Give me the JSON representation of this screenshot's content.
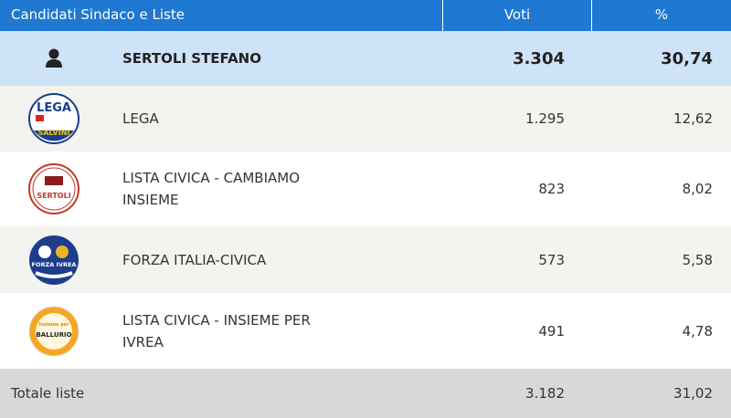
{
  "header": {
    "col_candidates": "Candidati Sindaco e Liste",
    "col_votes": "Voti",
    "col_percent": "%"
  },
  "candidate": {
    "icon": "user-icon",
    "name": "SERTOLI STEFANO",
    "votes": "3.304",
    "percent": "30,74"
  },
  "lists": [
    {
      "name": "LEGA",
      "votes": "1.295",
      "percent": "12,62",
      "logo": {
        "top": "LEGA",
        "bottom": "SALVINI",
        "colors": [
          "#ffffff",
          "#1a3f8c",
          "#f2c500"
        ]
      }
    },
    {
      "name": "LISTA CIVICA - CAMBIAMO INSIEME",
      "votes": "823",
      "percent": "8,02",
      "logo": {
        "top": "CAMBIAMO INSIEME",
        "bottom": "SERTOLI",
        "colors": [
          "#ffffff",
          "#c0392b"
        ]
      }
    },
    {
      "name": "FORZA ITALIA-CIVICA",
      "votes": "573",
      "percent": "5,58",
      "logo": {
        "bottom": "FORZA IVREA",
        "colors": [
          "#1e3c8c",
          "#ffffff"
        ]
      }
    },
    {
      "name": "LISTA CIVICA - INSIEME PER IVREA",
      "votes": "491",
      "percent": "4,78",
      "logo": {
        "top": "Insieme per Ivrea",
        "bottom": "BALLURIO",
        "colors": [
          "#f5a623",
          "#ffffff"
        ]
      }
    }
  ],
  "total": {
    "label": "Totale liste",
    "votes": "3.182",
    "percent": "31,02"
  }
}
